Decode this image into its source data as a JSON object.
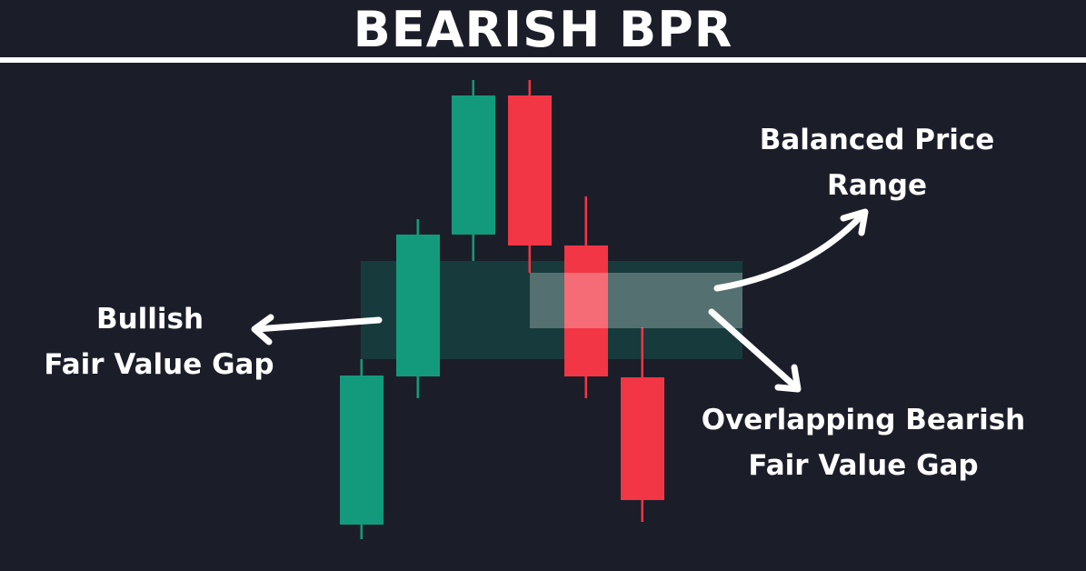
{
  "title": "BEARISH BPR",
  "colors": {
    "background": "#1b1e29",
    "bullish": "#139a7c",
    "bearish": "#f23645",
    "bullish_fvg_zone": "#173b3c",
    "overlap_zone": "#ffffff",
    "annotation": "#ffffff"
  },
  "candles": [
    {
      "direction": "bullish"
    },
    {
      "direction": "bullish"
    },
    {
      "direction": "bullish"
    },
    {
      "direction": "bearish"
    },
    {
      "direction": "bearish"
    },
    {
      "direction": "bearish"
    }
  ],
  "labels": {
    "bullish_fvg": [
      "Bullish",
      "Fair Value Gap"
    ],
    "bpr": [
      "Balanced Price",
      "Range"
    ],
    "bearish_fvg": [
      "Overlapping Bearish",
      "Fair Value Gap"
    ]
  }
}
